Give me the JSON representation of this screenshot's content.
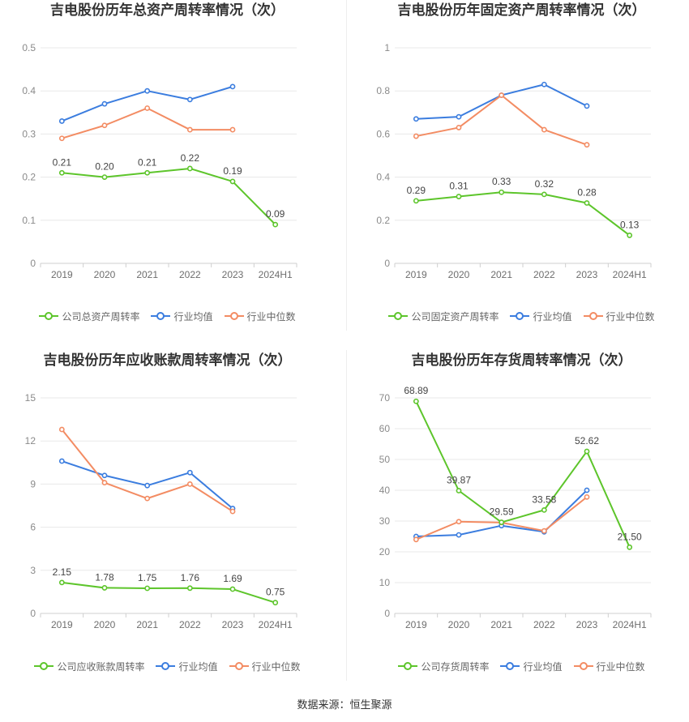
{
  "source_note": "数据来源：恒生聚源",
  "chart_data": [
    {
      "type": "line",
      "title": "吉电股份历年总资产周转率情况（次）",
      "categories": [
        "2019",
        "2020",
        "2021",
        "2022",
        "2023",
        "2024H1"
      ],
      "ylim": [
        0,
        0.5
      ],
      "y_ticks": [
        "0",
        "0.1",
        "0.2",
        "0.3",
        "0.4",
        "0.5"
      ],
      "grid": true,
      "legend_position": "bottom",
      "series": [
        {
          "name": "公司总资产周转率",
          "color": "#5dc52b",
          "values": [
            0.21,
            0.2,
            0.21,
            0.22,
            0.19,
            0.09
          ],
          "labels": [
            "0.21",
            "0.20",
            "0.21",
            "0.22",
            "0.19",
            "0.09"
          ]
        },
        {
          "name": "行业均值",
          "color": "#3b7ddf",
          "values": [
            0.33,
            0.37,
            0.4,
            0.38,
            0.41,
            null
          ]
        },
        {
          "name": "行业中位数",
          "color": "#f38c63",
          "values": [
            0.29,
            0.32,
            0.36,
            0.31,
            0.31,
            null
          ]
        }
      ]
    },
    {
      "type": "line",
      "title": "吉电股份历年固定资产周转率情况（次）",
      "categories": [
        "2019",
        "2020",
        "2021",
        "2022",
        "2023",
        "2024H1"
      ],
      "ylim": [
        0,
        1
      ],
      "y_ticks": [
        "0",
        "0.2",
        "0.4",
        "0.6",
        "0.8",
        "1"
      ],
      "grid": true,
      "legend_position": "bottom",
      "series": [
        {
          "name": "公司固定资产周转率",
          "color": "#5dc52b",
          "values": [
            0.29,
            0.31,
            0.33,
            0.32,
            0.28,
            0.13
          ],
          "labels": [
            "0.29",
            "0.31",
            "0.33",
            "0.32",
            "0.28",
            "0.13"
          ]
        },
        {
          "name": "行业均值",
          "color": "#3b7ddf",
          "values": [
            0.67,
            0.68,
            0.78,
            0.83,
            0.73,
            null
          ]
        },
        {
          "name": "行业中位数",
          "color": "#f38c63",
          "values": [
            0.59,
            0.63,
            0.78,
            0.62,
            0.55,
            null
          ]
        }
      ]
    },
    {
      "type": "line",
      "title": "吉电股份历年应收账款周转率情况（次）",
      "categories": [
        "2019",
        "2020",
        "2021",
        "2022",
        "2023",
        "2024H1"
      ],
      "ylim": [
        0,
        15
      ],
      "y_ticks": [
        "0",
        "3",
        "6",
        "9",
        "12",
        "15"
      ],
      "grid": true,
      "legend_position": "bottom",
      "series": [
        {
          "name": "公司应收账款周转率",
          "color": "#5dc52b",
          "values": [
            2.15,
            1.78,
            1.75,
            1.76,
            1.69,
            0.75
          ],
          "labels": [
            "2.15",
            "1.78",
            "1.75",
            "1.76",
            "1.69",
            "0.75"
          ]
        },
        {
          "name": "行业均值",
          "color": "#3b7ddf",
          "values": [
            10.6,
            9.6,
            8.9,
            9.8,
            7.3,
            null
          ]
        },
        {
          "name": "行业中位数",
          "color": "#f38c63",
          "values": [
            12.8,
            9.1,
            8.0,
            9.0,
            7.1,
            null
          ]
        }
      ]
    },
    {
      "type": "line",
      "title": "吉电股份历年存货周转率情况（次）",
      "categories": [
        "2019",
        "2020",
        "2021",
        "2022",
        "2023",
        "2024H1"
      ],
      "ylim": [
        0,
        70
      ],
      "y_ticks": [
        "0",
        "10",
        "20",
        "30",
        "40",
        "50",
        "60",
        "70"
      ],
      "grid": true,
      "legend_position": "bottom",
      "series": [
        {
          "name": "公司存货周转率",
          "color": "#5dc52b",
          "values": [
            68.89,
            39.87,
            29.59,
            33.58,
            52.62,
            21.5
          ],
          "labels": [
            "68.89",
            "39.87",
            "29.59",
            "33.58",
            "52.62",
            "21.50"
          ]
        },
        {
          "name": "行业均值",
          "color": "#3b7ddf",
          "values": [
            25.0,
            25.5,
            28.5,
            26.5,
            40.0,
            null
          ]
        },
        {
          "name": "行业中位数",
          "color": "#f38c63",
          "values": [
            24.0,
            29.8,
            29.5,
            26.8,
            37.8,
            null
          ]
        }
      ]
    }
  ]
}
